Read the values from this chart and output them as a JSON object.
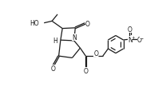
{
  "bg_color": "#ffffff",
  "line_color": "#1a1a1a",
  "line_width": 0.9,
  "figsize": [
    2.08,
    1.15
  ],
  "dpi": 100,
  "xlim": [
    0,
    10.5
  ],
  "ylim": [
    0,
    5.5
  ]
}
